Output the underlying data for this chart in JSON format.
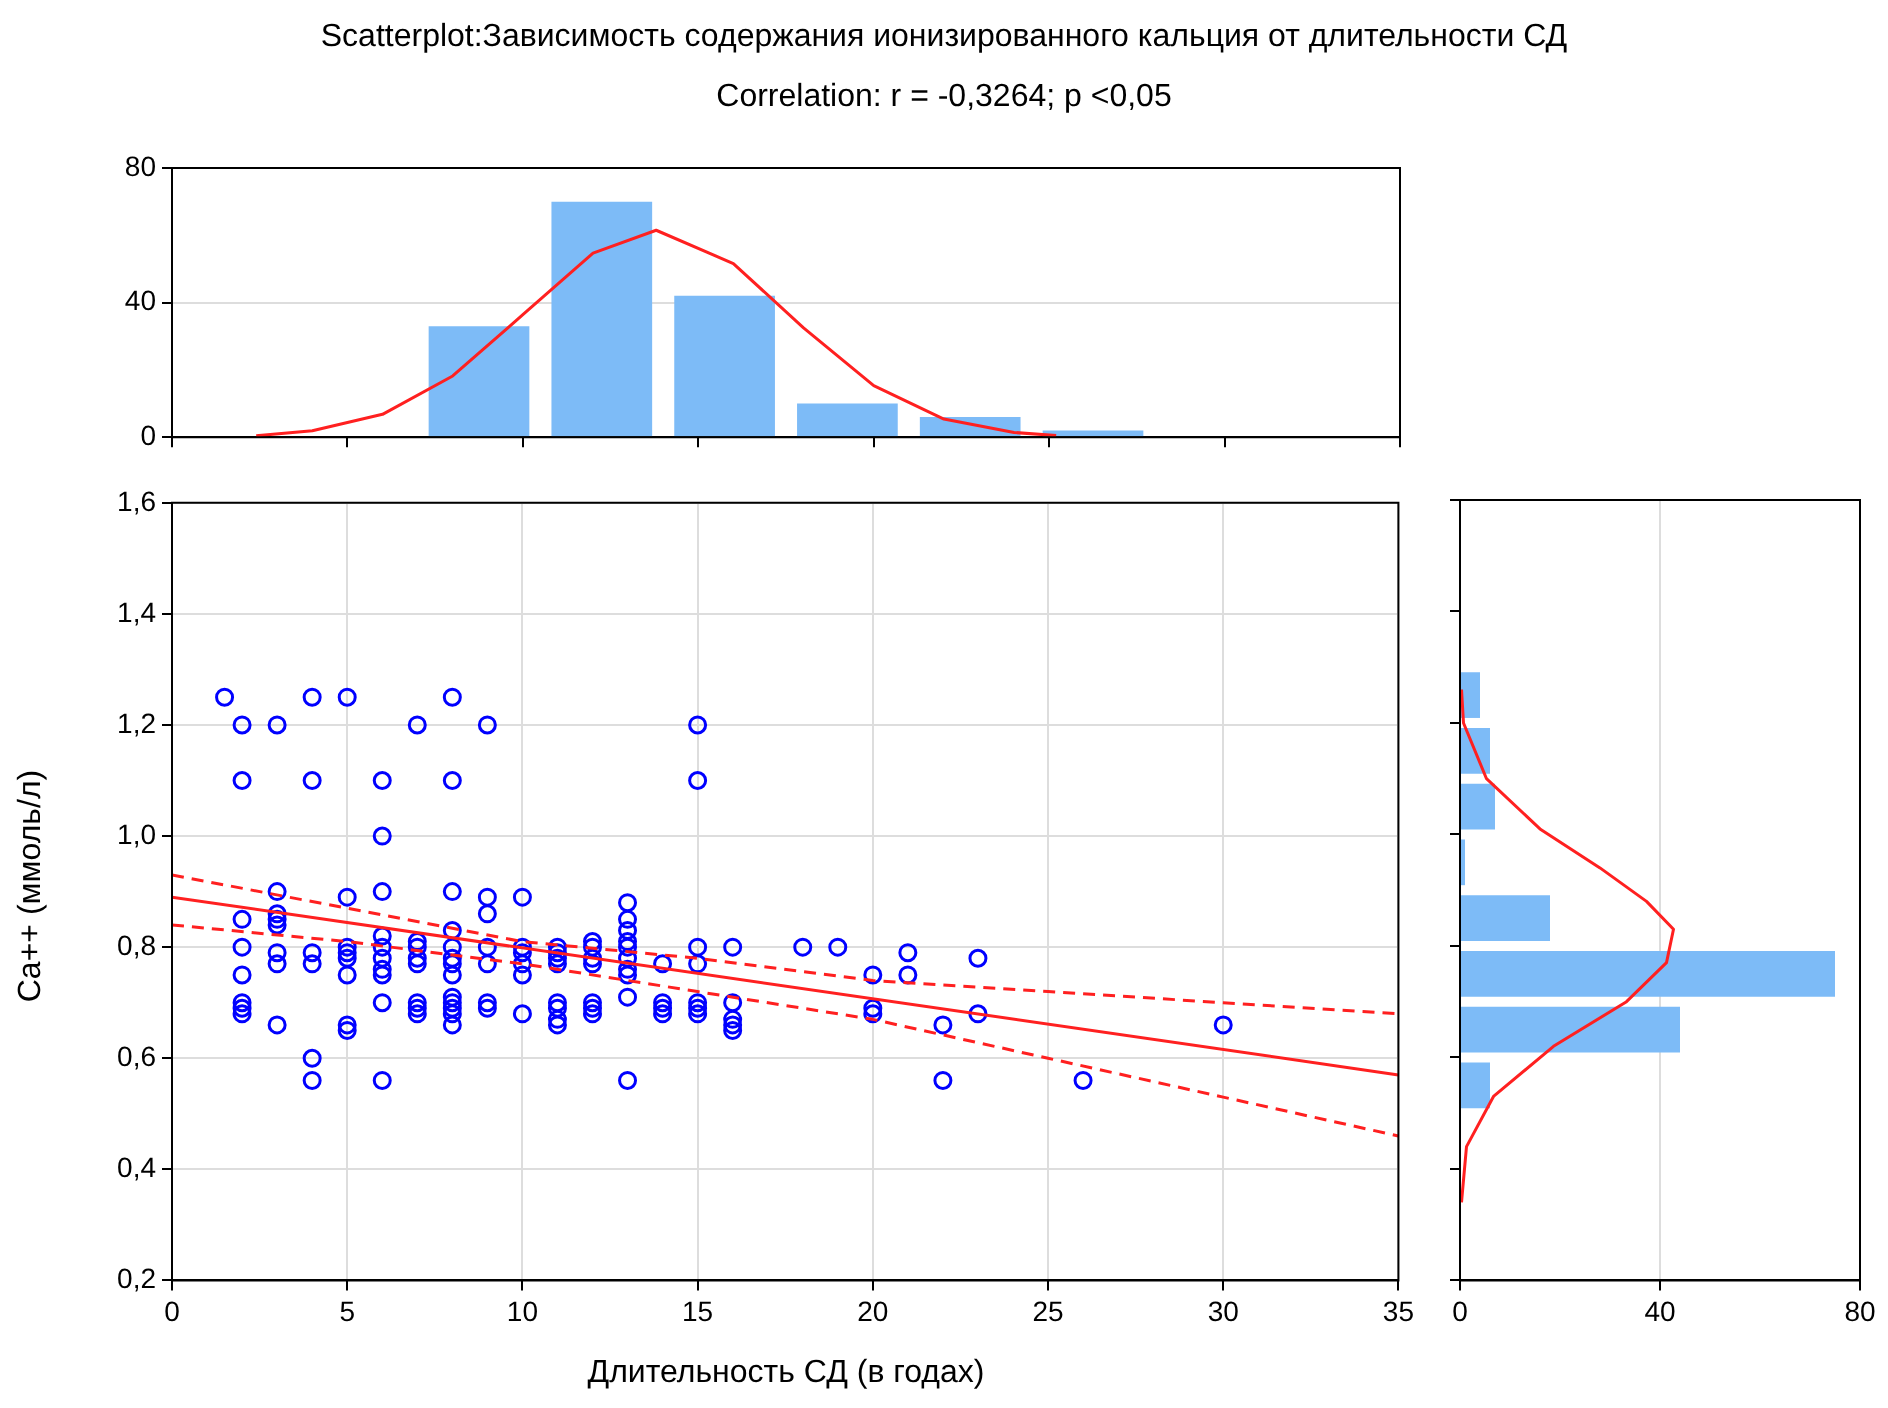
{
  "chart_data": [
    {
      "type": "histogram",
      "title": "Scatterplot:Зависимость содержания ионизированного кальция от длительности СД",
      "subtitle": "Correlation: r = -0,3264; p <0,05",
      "bins": [
        7,
        10.5,
        14,
        17.5,
        21,
        24.5,
        28
      ],
      "values": [
        33,
        70,
        42,
        10,
        6,
        2
      ],
      "color": "#7dbbf7",
      "xlim": [
        0,
        35
      ],
      "xticks": [
        {
          "value": 0,
          "label": null
        },
        {
          "value": 5,
          "label": null
        },
        {
          "value": 10,
          "label": null
        },
        {
          "value": 15,
          "label": null
        },
        {
          "value": 20,
          "label": null
        },
        {
          "value": 25,
          "label": null
        },
        {
          "value": 30,
          "label": null
        },
        {
          "value": 35,
          "label": null
        }
      ],
      "ylim": [
        0,
        80
      ],
      "yticks": [
        0,
        40,
        80
      ],
      "tick_labels": "y",
      "grid": "y",
      "series": [
        {
          "type": "line",
          "color": "#ff2020",
          "x": [
            2.4,
            4,
            6,
            8,
            10,
            12,
            13.8,
            16,
            18,
            20,
            22,
            24,
            25.2
          ],
          "values": [
            0.4,
            1.9,
            6.8,
            18.2,
            36.4,
            54.7,
            61.5,
            51.6,
            32.5,
            15.3,
            5.4,
            1.4,
            0.5
          ]
        }
      ]
    },
    {
      "type": "scatter",
      "xlabel": "Длительность СД (в годах)",
      "ylabel": "Ca++ (ммоль/л)",
      "xlim": [
        0,
        35
      ],
      "xticks": [
        0,
        5,
        10,
        15,
        20,
        25,
        30,
        35
      ],
      "ylim": [
        0.2,
        1.6
      ],
      "yticks": [
        {
          "value": 0.2,
          "label": "0,2"
        },
        {
          "value": 0.4,
          "label": "0,4"
        },
        {
          "value": 0.6,
          "label": "0,6"
        },
        {
          "value": 0.8,
          "label": "0,8"
        },
        {
          "value": 1.0,
          "label": "1,0"
        },
        {
          "value": 1.2,
          "label": "1,2"
        },
        {
          "value": 1.4,
          "label": "1,4"
        },
        {
          "value": 1.6,
          "label": "1,6"
        }
      ],
      "grid": true,
      "series": [
        {
          "type": "scatter",
          "color": "#0000ff",
          "marker": "circle",
          "x": [
            1.5,
            2,
            2,
            2,
            2,
            2,
            2,
            2,
            2,
            3,
            3,
            3,
            3,
            3,
            3,
            3,
            3,
            4,
            4,
            4,
            4,
            4,
            4,
            5,
            5,
            5,
            5,
            5,
            5,
            5,
            5,
            6,
            6,
            6,
            6,
            6,
            6,
            6,
            6,
            6,
            6,
            7,
            7,
            7,
            7,
            7,
            7,
            7,
            7,
            8,
            8,
            8,
            8,
            8,
            8,
            8,
            8,
            8,
            8,
            8,
            8,
            8,
            9,
            9,
            9,
            9,
            9,
            9,
            9,
            10,
            10,
            10,
            10,
            10,
            10,
            11,
            11,
            11,
            11,
            11,
            11,
            11,
            11,
            12,
            12,
            12,
            12,
            12,
            12,
            12,
            13,
            13,
            13,
            13,
            13,
            13,
            13,
            13,
            13,
            13,
            14,
            14,
            14,
            14,
            15,
            15,
            15,
            15,
            15,
            15,
            15,
            16,
            16,
            16,
            16,
            16,
            18,
            19,
            20,
            20,
            20,
            21,
            21,
            22,
            22,
            23,
            23,
            26,
            30
          ],
          "values": [
            1.25,
            1.2,
            1.1,
            0.85,
            0.8,
            0.75,
            0.7,
            0.69,
            0.68,
            1.2,
            0.9,
            0.86,
            0.85,
            0.84,
            0.79,
            0.77,
            0.66,
            1.25,
            1.1,
            0.79,
            0.77,
            0.6,
            0.56,
            1.25,
            0.89,
            0.8,
            0.79,
            0.78,
            0.75,
            0.66,
            0.65,
            1.1,
            1.0,
            0.9,
            0.82,
            0.8,
            0.78,
            0.76,
            0.75,
            0.7,
            0.56,
            1.2,
            0.81,
            0.8,
            0.78,
            0.77,
            0.7,
            0.69,
            0.68,
            1.25,
            1.1,
            0.9,
            0.83,
            0.8,
            0.78,
            0.77,
            0.75,
            0.71,
            0.7,
            0.69,
            0.68,
            0.66,
            1.2,
            0.89,
            0.86,
            0.8,
            0.77,
            0.7,
            0.69,
            0.89,
            0.8,
            0.79,
            0.77,
            0.75,
            0.68,
            0.8,
            0.79,
            0.78,
            0.77,
            0.7,
            0.69,
            0.67,
            0.66,
            0.81,
            0.8,
            0.78,
            0.77,
            0.7,
            0.69,
            0.68,
            0.88,
            0.85,
            0.83,
            0.81,
            0.8,
            0.78,
            0.76,
            0.75,
            0.71,
            0.56,
            0.77,
            0.7,
            0.69,
            0.68,
            1.2,
            1.1,
            0.8,
            0.77,
            0.7,
            0.69,
            0.68,
            0.8,
            0.7,
            0.67,
            0.66,
            0.65,
            0.8,
            0.8,
            0.75,
            0.69,
            0.68,
            0.79,
            0.75,
            0.66,
            0.56,
            0.78,
            0.68,
            0.56,
            0.66
          ]
        },
        {
          "type": "line",
          "color": "#ff2020",
          "line_style": "solid",
          "x": [
            0,
            35
          ],
          "values": [
            0.89,
            0.57
          ]
        },
        {
          "type": "line",
          "color": "#ff2020",
          "line_style": "dashed",
          "x": [
            0,
            5,
            10,
            15,
            20,
            25,
            30,
            35
          ],
          "values": [
            0.93,
            0.87,
            0.81,
            0.78,
            0.74,
            0.72,
            0.7,
            0.68
          ]
        },
        {
          "type": "line",
          "color": "#ff2020",
          "line_style": "dashed",
          "x": [
            0,
            5,
            10,
            15,
            20,
            25,
            30,
            35
          ],
          "values": [
            0.84,
            0.81,
            0.77,
            0.72,
            0.67,
            0.6,
            0.53,
            0.46
          ]
        }
      ]
    },
    {
      "type": "histogram",
      "orientation": "horizontal",
      "bins": [
        0.5,
        0.6,
        0.7,
        0.8,
        0.9,
        1.0,
        1.1,
        1.2,
        1.3
      ],
      "values": [
        6,
        44,
        75,
        18,
        1,
        7,
        6,
        4
      ],
      "color": "#7dbbf7",
      "xlim": [
        0,
        80
      ],
      "xticks": [
        0,
        40,
        80
      ],
      "ylim": [
        0.2,
        1.6
      ],
      "yticks": [
        {
          "value": 0.2,
          "label": null
        },
        {
          "value": 0.4,
          "label": null
        },
        {
          "value": 0.6,
          "label": null
        },
        {
          "value": 0.8,
          "label": null
        },
        {
          "value": 1.0,
          "label": null
        },
        {
          "value": 1.2,
          "label": null
        },
        {
          "value": 1.4,
          "label": null
        },
        {
          "value": 1.6,
          "label": null
        }
      ],
      "tick_labels": "x",
      "grid": "x",
      "series": [
        {
          "type": "line",
          "color": "#ff2020",
          "x": [
            1.26,
            1.2,
            1.1,
            1.01,
            0.94,
            0.88,
            0.83,
            0.77,
            0.7,
            0.62,
            0.53,
            0.44,
            0.34
          ],
          "values": [
            0.3,
            0.7,
            5.3,
            16,
            28,
            37.3,
            42.7,
            41.3,
            33.3,
            18.7,
            6.7,
            1.3,
            0.3
          ]
        }
      ]
    }
  ]
}
